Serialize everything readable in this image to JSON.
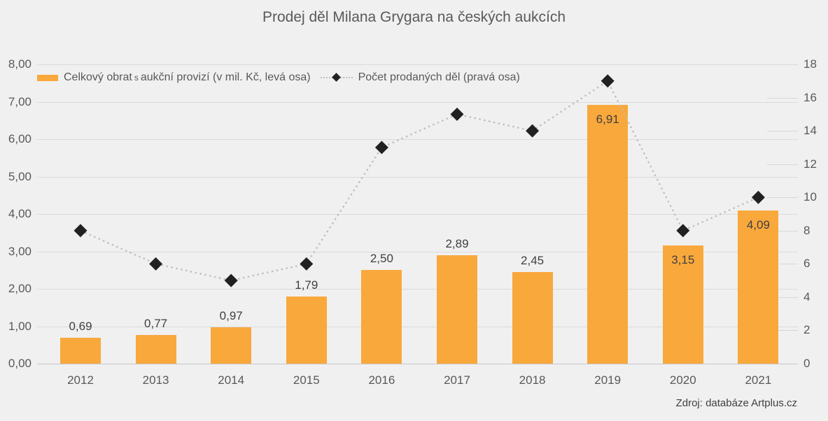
{
  "chart_data": {
    "type": "combo-bar-line",
    "title": "Prodej děl Milana Grygara na českých aukcích",
    "categories": [
      "2012",
      "2013",
      "2014",
      "2015",
      "2016",
      "2017",
      "2018",
      "2019",
      "2020",
      "2021"
    ],
    "series": [
      {
        "name": "Celkový obrat s aukční provizí (v mil. Kč, levá osa)",
        "type": "bar",
        "axis": "left",
        "values": [
          0.69,
          0.77,
          0.97,
          1.79,
          2.5,
          2.89,
          2.45,
          6.91,
          3.15,
          4.09
        ],
        "value_labels": [
          "0,69",
          "0,77",
          "0,97",
          "1,79",
          "2,50",
          "2,89",
          "2,45",
          "6,91",
          "3,15",
          "4,09"
        ]
      },
      {
        "name": "Počet prodaných děl (pravá osa)",
        "type": "line",
        "axis": "right",
        "values": [
          8,
          6,
          5,
          6,
          13,
          15,
          14,
          17,
          8,
          10
        ]
      }
    ],
    "left_axis": {
      "min": 0,
      "max": 8,
      "step": 1,
      "tick_labels": [
        "8,00",
        "7,00",
        "6,00",
        "5,00",
        "4,00",
        "3,00",
        "2,00",
        "1,00",
        "0,00"
      ]
    },
    "right_axis": {
      "min": 0,
      "max": 18,
      "step": 2,
      "tick_labels": [
        "18",
        "16",
        "14",
        "12",
        "10",
        "8",
        "6",
        "4",
        "2",
        "0"
      ]
    },
    "grid": true,
    "legend_position": "top-left"
  },
  "legend": {
    "bar_label_parts": [
      "Celkový obrat",
      "s",
      "aukční provizí (v mil. Kč, levá osa)"
    ],
    "line_label": "Počet prodaných děl (pravá osa)"
  },
  "source_note": "Zdroj: databáze Artplus.cz",
  "colors": {
    "bar": "#F9A83C",
    "marker": "#212121",
    "dotted_line": "#BEBEBE",
    "background": "#F0F0F0",
    "gridline": "#DBDBDB",
    "axis_text": "#595959",
    "value_text": "#404040"
  }
}
